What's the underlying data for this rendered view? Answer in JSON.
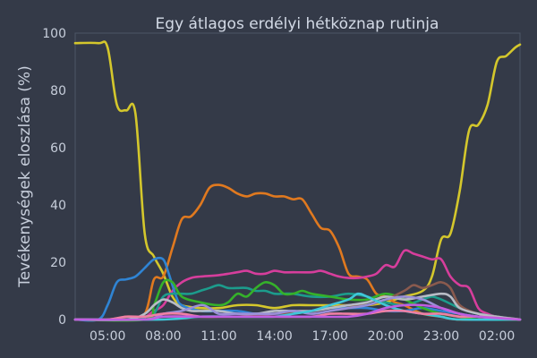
{
  "chart_data": {
    "type": "line",
    "title": "Egy átlagos erdélyi hétköznap rutinja",
    "xlabel": "",
    "ylabel": "Tevékenységek eloszlása (%)",
    "xlim": [
      3.25,
      27.25
    ],
    "ylim": [
      0,
      100
    ],
    "grid": false,
    "x_ticks": [
      "05:00",
      "08:00",
      "11:00",
      "14:00",
      "17:00",
      "20:00",
      "23:00",
      "02:00"
    ],
    "x_tick_values": [
      5,
      8,
      11,
      14,
      17,
      20,
      23,
      26
    ],
    "y_ticks": [
      0,
      20,
      40,
      60,
      80,
      100
    ],
    "series": [
      {
        "color": "#d4c72c",
        "points": [
          [
            3.25,
            96.5
          ],
          [
            4.5,
            96.5
          ],
          [
            5.0,
            95
          ],
          [
            5.5,
            75
          ],
          [
            6.0,
            73
          ],
          [
            6.5,
            72
          ],
          [
            7.0,
            30
          ],
          [
            7.5,
            22
          ],
          [
            8.0,
            16
          ],
          [
            8.5,
            8
          ],
          [
            9.0,
            5
          ],
          [
            10.0,
            4
          ],
          [
            11.0,
            4
          ],
          [
            12.0,
            5
          ],
          [
            13.0,
            5
          ],
          [
            14.0,
            4
          ],
          [
            15.0,
            5
          ],
          [
            16.0,
            5
          ],
          [
            17.0,
            5
          ],
          [
            18.0,
            5
          ],
          [
            19.0,
            5
          ],
          [
            20.0,
            6
          ],
          [
            21.0,
            8
          ],
          [
            22.0,
            10
          ],
          [
            22.5,
            15
          ],
          [
            23.0,
            28
          ],
          [
            23.5,
            30
          ],
          [
            24.0,
            45
          ],
          [
            24.5,
            66
          ],
          [
            25.0,
            68
          ],
          [
            25.5,
            75
          ],
          [
            26.0,
            90
          ],
          [
            26.5,
            92
          ],
          [
            27.0,
            95
          ],
          [
            27.25,
            96
          ]
        ]
      },
      {
        "color": "#e0791f",
        "points": [
          [
            3.25,
            0
          ],
          [
            5.0,
            0
          ],
          [
            6.0,
            1
          ],
          [
            7.0,
            2
          ],
          [
            7.5,
            14
          ],
          [
            8.0,
            15
          ],
          [
            8.5,
            25
          ],
          [
            9.0,
            35
          ],
          [
            9.5,
            36
          ],
          [
            10.0,
            40
          ],
          [
            10.5,
            46
          ],
          [
            11.0,
            47
          ],
          [
            11.5,
            46
          ],
          [
            12.0,
            44
          ],
          [
            12.5,
            43
          ],
          [
            13.0,
            44
          ],
          [
            13.5,
            44
          ],
          [
            14.0,
            43
          ],
          [
            14.5,
            43
          ],
          [
            15.0,
            42
          ],
          [
            15.5,
            42
          ],
          [
            16.0,
            37
          ],
          [
            16.5,
            32
          ],
          [
            17.0,
            31
          ],
          [
            17.5,
            25
          ],
          [
            18.0,
            16
          ],
          [
            18.5,
            15
          ],
          [
            19.0,
            14
          ],
          [
            19.5,
            9
          ],
          [
            20.0,
            8
          ],
          [
            20.5,
            6
          ],
          [
            21.0,
            5
          ],
          [
            22.0,
            2
          ],
          [
            23.0,
            1
          ],
          [
            24.0,
            0
          ],
          [
            27.25,
            0
          ]
        ]
      },
      {
        "color": "#d63e9c",
        "points": [
          [
            3.25,
            0
          ],
          [
            6.5,
            0
          ],
          [
            7.5,
            3
          ],
          [
            8.0,
            5
          ],
          [
            8.5,
            10
          ],
          [
            9.0,
            13
          ],
          [
            9.5,
            14.5
          ],
          [
            10.0,
            15
          ],
          [
            11.0,
            15.5
          ],
          [
            12.0,
            16.5
          ],
          [
            12.5,
            17
          ],
          [
            13.0,
            16
          ],
          [
            13.5,
            16
          ],
          [
            14.0,
            17
          ],
          [
            14.5,
            16.5
          ],
          [
            15.0,
            16.5
          ],
          [
            16.0,
            16.5
          ],
          [
            16.5,
            17
          ],
          [
            17.0,
            16
          ],
          [
            17.5,
            15
          ],
          [
            18.0,
            14.5
          ],
          [
            18.5,
            14.5
          ],
          [
            19.0,
            15
          ],
          [
            19.5,
            16
          ],
          [
            20.0,
            19
          ],
          [
            20.5,
            18.5
          ],
          [
            21.0,
            24
          ],
          [
            21.5,
            23
          ],
          [
            22.0,
            22
          ],
          [
            22.5,
            21
          ],
          [
            23.0,
            21
          ],
          [
            23.5,
            15
          ],
          [
            24.0,
            12
          ],
          [
            24.5,
            11
          ],
          [
            25.0,
            4
          ],
          [
            25.5,
            2
          ],
          [
            26.0,
            1
          ],
          [
            27.25,
            0
          ]
        ]
      },
      {
        "color": "#2f84d4",
        "points": [
          [
            3.25,
            0
          ],
          [
            4.5,
            0
          ],
          [
            5.0,
            5
          ],
          [
            5.5,
            13
          ],
          [
            6.0,
            14
          ],
          [
            6.5,
            15
          ],
          [
            7.0,
            18
          ],
          [
            7.5,
            21
          ],
          [
            8.0,
            21
          ],
          [
            8.3,
            16
          ],
          [
            8.7,
            8
          ],
          [
            9.0,
            5
          ],
          [
            10.0,
            3
          ],
          [
            11.0,
            3
          ],
          [
            12.0,
            3
          ],
          [
            13.0,
            2
          ],
          [
            14.0,
            2
          ],
          [
            15.0,
            2
          ],
          [
            16.0,
            3
          ],
          [
            17.0,
            4
          ],
          [
            18.0,
            4
          ],
          [
            19.0,
            4
          ],
          [
            20.0,
            3
          ],
          [
            21.0,
            3
          ],
          [
            22.0,
            4
          ],
          [
            23.0,
            3
          ],
          [
            24.0,
            2
          ],
          [
            25.0,
            1
          ],
          [
            27.25,
            0
          ]
        ]
      },
      {
        "color": "#1c9c8c",
        "points": [
          [
            3.25,
            0
          ],
          [
            6.5,
            0
          ],
          [
            7.0,
            1
          ],
          [
            7.5,
            2
          ],
          [
            8.0,
            8
          ],
          [
            8.5,
            9
          ],
          [
            9.0,
            9
          ],
          [
            9.5,
            9
          ],
          [
            10.0,
            10
          ],
          [
            10.5,
            11
          ],
          [
            11.0,
            12
          ],
          [
            11.5,
            11
          ],
          [
            12.0,
            11
          ],
          [
            12.5,
            11
          ],
          [
            13.0,
            10
          ],
          [
            13.5,
            10
          ],
          [
            14.0,
            9
          ],
          [
            14.5,
            9
          ],
          [
            15.0,
            9
          ],
          [
            16.0,
            8
          ],
          [
            17.0,
            8
          ],
          [
            18.0,
            9
          ],
          [
            19.0,
            8
          ],
          [
            20.0,
            6
          ],
          [
            21.0,
            5
          ],
          [
            22.0,
            7
          ],
          [
            22.5,
            8
          ],
          [
            23.0,
            7
          ],
          [
            24.0,
            4
          ],
          [
            25.0,
            2
          ],
          [
            27.25,
            0
          ]
        ]
      },
      {
        "color": "#35b12a",
        "points": [
          [
            3.25,
            0
          ],
          [
            7.0,
            0
          ],
          [
            7.5,
            5
          ],
          [
            8.0,
            13
          ],
          [
            8.5,
            13
          ],
          [
            9.0,
            8
          ],
          [
            10.0,
            6
          ],
          [
            11.0,
            5
          ],
          [
            11.5,
            6
          ],
          [
            12.0,
            9
          ],
          [
            12.5,
            8
          ],
          [
            13.0,
            11
          ],
          [
            13.5,
            13
          ],
          [
            14.0,
            12
          ],
          [
            14.5,
            9
          ],
          [
            15.0,
            9
          ],
          [
            15.5,
            10
          ],
          [
            16.0,
            9
          ],
          [
            17.0,
            8
          ],
          [
            18.0,
            7
          ],
          [
            19.0,
            7
          ],
          [
            20.0,
            9
          ],
          [
            21.0,
            7
          ],
          [
            22.0,
            4
          ],
          [
            23.0,
            2
          ],
          [
            24.0,
            1
          ],
          [
            25.0,
            0
          ],
          [
            27.25,
            0
          ]
        ]
      },
      {
        "color": "#8a5a4e",
        "points": [
          [
            3.25,
            0
          ],
          [
            7.0,
            0
          ],
          [
            8.0,
            1
          ],
          [
            10.0,
            1
          ],
          [
            12.0,
            1
          ],
          [
            14.0,
            2
          ],
          [
            16.0,
            3
          ],
          [
            17.0,
            4
          ],
          [
            18.0,
            5
          ],
          [
            19.0,
            5
          ],
          [
            20.0,
            7
          ],
          [
            21.0,
            10
          ],
          [
            21.5,
            12
          ],
          [
            22.0,
            11
          ],
          [
            22.5,
            12
          ],
          [
            23.0,
            13
          ],
          [
            23.5,
            11
          ],
          [
            24.0,
            5
          ],
          [
            25.0,
            2
          ],
          [
            26.0,
            1
          ],
          [
            27.25,
            0
          ]
        ]
      },
      {
        "color": "#b8bcc6",
        "points": [
          [
            3.25,
            0
          ],
          [
            6.0,
            0
          ],
          [
            7.0,
            2
          ],
          [
            7.5,
            5
          ],
          [
            8.0,
            7
          ],
          [
            8.5,
            6
          ],
          [
            9.0,
            4
          ],
          [
            9.5,
            3
          ],
          [
            10.0,
            3
          ],
          [
            11.0,
            3
          ],
          [
            12.0,
            2
          ],
          [
            13.0,
            2
          ],
          [
            14.0,
            3
          ],
          [
            15.0,
            3
          ],
          [
            16.0,
            3
          ],
          [
            17.0,
            4
          ],
          [
            18.0,
            5
          ],
          [
            19.0,
            6
          ],
          [
            20.0,
            8
          ],
          [
            21.0,
            7
          ],
          [
            22.0,
            8
          ],
          [
            23.0,
            9
          ],
          [
            23.5,
            8
          ],
          [
            24.0,
            4
          ],
          [
            25.0,
            2
          ],
          [
            26.0,
            1
          ],
          [
            27.25,
            0
          ]
        ]
      },
      {
        "color": "#9a8fd8",
        "points": [
          [
            3.25,
            0
          ],
          [
            7.0,
            0
          ],
          [
            8.0,
            2
          ],
          [
            9.0,
            3
          ],
          [
            10.0,
            5
          ],
          [
            10.5,
            4
          ],
          [
            11.0,
            2
          ],
          [
            12.0,
            2
          ],
          [
            13.0,
            2
          ],
          [
            14.0,
            2
          ],
          [
            15.0,
            3
          ],
          [
            16.0,
            2
          ],
          [
            17.0,
            3
          ],
          [
            18.0,
            4
          ],
          [
            19.0,
            5
          ],
          [
            20.0,
            7
          ],
          [
            21.0,
            8
          ],
          [
            22.0,
            7
          ],
          [
            23.0,
            4
          ],
          [
            24.0,
            2
          ],
          [
            25.0,
            1
          ],
          [
            27.25,
            0
          ]
        ]
      },
      {
        "color": "#3fc7d9",
        "points": [
          [
            3.25,
            0
          ],
          [
            8.0,
            0
          ],
          [
            10.0,
            1
          ],
          [
            12.0,
            1
          ],
          [
            14.0,
            1
          ],
          [
            15.0,
            2
          ],
          [
            16.0,
            3
          ],
          [
            17.0,
            5
          ],
          [
            18.0,
            7
          ],
          [
            18.5,
            9
          ],
          [
            19.0,
            8
          ],
          [
            20.0,
            5
          ],
          [
            21.0,
            3
          ],
          [
            22.0,
            2
          ],
          [
            23.0,
            1
          ],
          [
            24.0,
            0
          ],
          [
            27.25,
            0
          ]
        ]
      },
      {
        "color": "#f07fa4",
        "points": [
          [
            3.25,
            0
          ],
          [
            5.0,
            0
          ],
          [
            6.0,
            1
          ],
          [
            7.0,
            1
          ],
          [
            8.0,
            2
          ],
          [
            9.0,
            2
          ],
          [
            10.0,
            1
          ],
          [
            11.0,
            1
          ],
          [
            12.0,
            1
          ],
          [
            14.0,
            1
          ],
          [
            16.0,
            1
          ],
          [
            17.0,
            2
          ],
          [
            18.0,
            2
          ],
          [
            19.0,
            2
          ],
          [
            20.0,
            3
          ],
          [
            21.0,
            3
          ],
          [
            22.0,
            2
          ],
          [
            23.0,
            2
          ],
          [
            24.0,
            1
          ],
          [
            25.0,
            1
          ],
          [
            27.25,
            0
          ]
        ]
      },
      {
        "color": "#c05ee0",
        "points": [
          [
            3.25,
            0
          ],
          [
            7.0,
            0
          ],
          [
            8.0,
            1
          ],
          [
            10.0,
            1
          ],
          [
            12.0,
            1
          ],
          [
            14.0,
            1
          ],
          [
            16.0,
            1
          ],
          [
            18.0,
            1
          ],
          [
            19.0,
            2
          ],
          [
            20.0,
            4
          ],
          [
            21.0,
            5
          ],
          [
            22.0,
            5
          ],
          [
            23.0,
            4
          ],
          [
            24.0,
            2
          ],
          [
            25.0,
            1
          ],
          [
            27.25,
            0
          ]
        ]
      }
    ]
  }
}
